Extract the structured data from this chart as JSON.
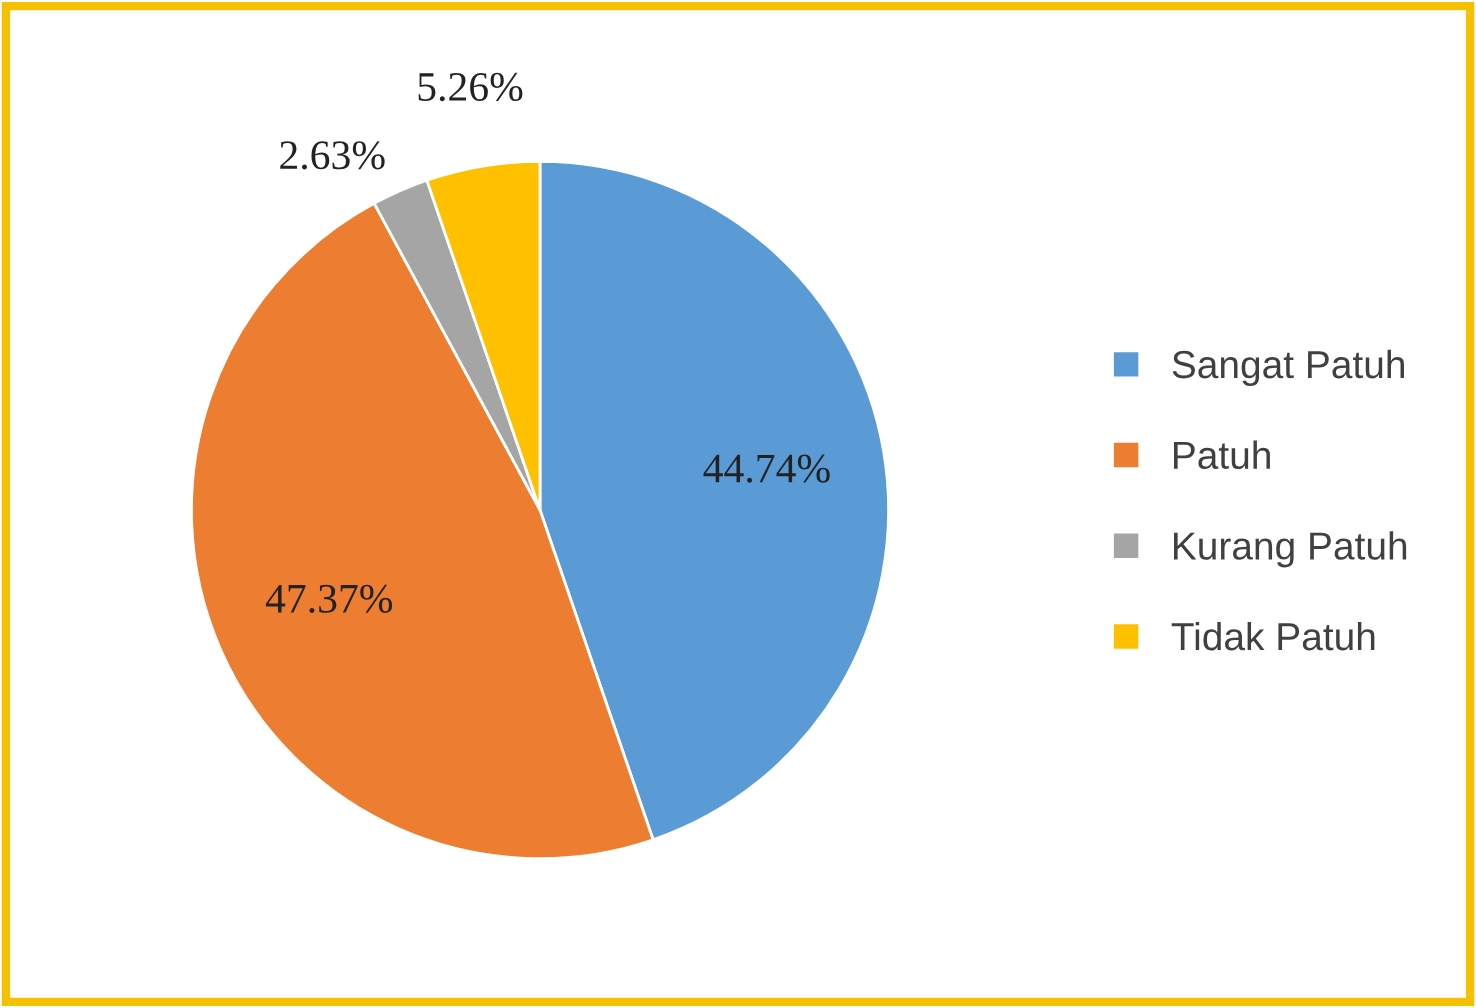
{
  "chart_data": {
    "type": "pie",
    "categories": [
      "Sangat Patuh",
      "Patuh",
      "Kurang Patuh",
      "Tidak Patuh"
    ],
    "values": [
      44.74,
      47.37,
      2.63,
      5.26
    ],
    "colors": [
      "#5b9bd5",
      "#ed7d31",
      "#a5a5a5",
      "#ffc000"
    ],
    "value_labels": [
      "44.74%",
      "47.37%",
      "2.63%",
      "5.26%"
    ],
    "legend": "right"
  }
}
